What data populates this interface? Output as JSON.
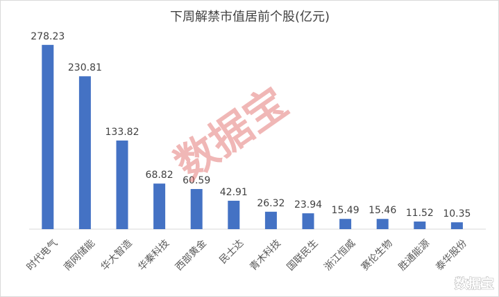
{
  "chart_data": {
    "type": "bar",
    "title": "下周解禁市值居前个股(亿元)",
    "categories": [
      "时代电气",
      "南网储能",
      "华大智造",
      "华秦科技",
      "西部黄金",
      "民士达",
      "青木科技",
      "国联民生",
      "浙江恒威",
      "赛伦生物",
      "胜通能源",
      "泰华股份"
    ],
    "values": [
      278.23,
      230.81,
      133.82,
      68.82,
      60.59,
      42.91,
      26.32,
      23.94,
      15.49,
      15.46,
      11.52,
      10.35
    ],
    "value_labels": [
      "278.23",
      "230.81",
      "133.82",
      "68.82",
      "60.59",
      "42.91",
      "26.32",
      "23.94",
      "15.49",
      "15.46",
      "11.52",
      "10.35"
    ],
    "ylim": [
      0,
      300
    ],
    "xlabel": "",
    "ylabel": "",
    "grid": false,
    "bar_color": "#4472c4"
  },
  "watermark": {
    "text": "数据宝",
    "corner_text": "数据宝",
    "color": "#e0615f"
  }
}
